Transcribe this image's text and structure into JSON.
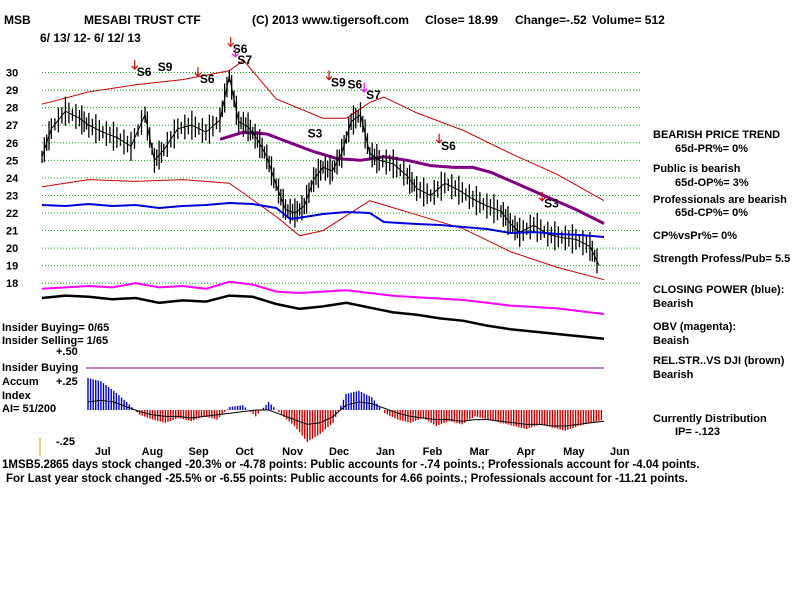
{
  "header": {
    "ticker": "MSB",
    "name": "MESABI TRUST CTF",
    "copyright": "(C) 2013 www.tigersoft.com",
    "close": "Close=  18.99",
    "change": "Change=-.52",
    "volume": "Volume= 512",
    "date_range": "6/ 13/ 12-  6/ 12/ 13"
  },
  "right_panel": {
    "l1": "BEARISH PRICE TREND",
    "l2": "65d-PR%= 0%",
    "l3": "Public is bearish",
    "l4": "65d-OP%= 3%",
    "l5": "Professionals are bearish",
    "l6": "65d-CP%= 0%",
    "l7": "CP%vsPr%=  0%",
    "l8": "Strength Profess/Pub= 5.5",
    "l9": "CLOSING POWER (blue):",
    "l10": "Bearish",
    "l11": "OBV (magenta):",
    "l12": "Beaish",
    "l13": "REL.STR..VS DJI (brown)",
    "l14": "Bearish",
    "l15": "Currently Distribution",
    "l16": "IP= -.123"
  },
  "left_panel": {
    "insider_buying_count": "Insider Buying= 0/65",
    "insider_selling_count": "Insider Selling= 1/65",
    "plus50": "+.50",
    "insider_buying": "Insider Buying",
    "accum": "Accum",
    "plus25": "+.25",
    "index": "Index",
    "ai": "AI= 51/200",
    "minus25": "-.25"
  },
  "bottom_text": {
    "overlap": "1MSB5.28",
    "line1": "65 days stock changed -20.3% or -4.78 points:  Public accounts for -.74 points.;  Professionals account for -4.04 points.",
    "line2": "For Last year stock changed -25.5% or -6.55 points:  Public accounts for  4.66 points.;  Professionals account for -11.21 points."
  },
  "colors": {
    "price": "#000000",
    "band": "#cc0000",
    "ma": "#800080",
    "closing_power": "#0000dd",
    "obv": "#ff00ff",
    "relstr": "#000000",
    "accum_pos": "#0000cc",
    "accum_neg": "#cc0000",
    "signal_red": "#cc0000",
    "signal_magenta": "#ff00ff",
    "grid": "#00aa00"
  },
  "chart_data": {
    "type": "line",
    "title": "MESABI TRUST CTF",
    "y_ticks": [
      30,
      29,
      28,
      27,
      26,
      25,
      24,
      23,
      22,
      21,
      20,
      19,
      18
    ],
    "ylim": [
      17.5,
      31
    ],
    "xlim": [
      0,
      12
    ],
    "months": [
      {
        "label": "Jul",
        "x": 1.0
      },
      {
        "label": "Aug",
        "x": 2.0
      },
      {
        "label": "Sep",
        "x": 3.0
      },
      {
        "label": "Oct",
        "x": 4.0
      },
      {
        "label": "Nov",
        "x": 5.0
      },
      {
        "label": "Dec",
        "x": 6.0
      },
      {
        "label": "Jan",
        "x": 7.0
      },
      {
        "label": "Feb",
        "x": 8.0
      },
      {
        "label": "Mar",
        "x": 9.0
      },
      {
        "label": "Apr",
        "x": 10.0
      },
      {
        "label": "May",
        "x": 11.0
      },
      {
        "label": "Jun",
        "x": 12.0
      }
    ],
    "price": {
      "x": [
        0,
        0.2,
        0.5,
        0.8,
        1.0,
        1.3,
        1.6,
        1.9,
        2.2,
        2.4,
        2.6,
        2.9,
        3.2,
        3.5,
        3.8,
        4.0,
        4.2,
        4.4,
        4.6,
        4.8,
        5.0,
        5.2,
        5.4,
        5.6,
        5.8,
        6.0,
        6.2,
        6.4,
        6.6,
        6.8,
        7.0,
        7.2,
        7.5,
        7.8,
        8.0,
        8.3,
        8.6,
        8.9,
        9.2,
        9.5,
        9.8,
        10.0,
        10.2,
        10.5,
        10.8,
        11.1,
        11.4,
        11.7,
        11.9
      ],
      "values": [
        25.2,
        26.8,
        27.8,
        27.4,
        27.0,
        26.6,
        26.3,
        25.8,
        27.6,
        25.0,
        25.6,
        26.8,
        27.0,
        26.6,
        27.3,
        29.8,
        27.2,
        26.9,
        26.2,
        25.2,
        23.6,
        22.2,
        22.0,
        22.4,
        23.9,
        24.6,
        24.4,
        25.4,
        27.2,
        27.6,
        25.4,
        25.0,
        24.8,
        24.1,
        23.4,
        23.0,
        23.7,
        23.3,
        22.8,
        22.4,
        22.1,
        21.4,
        20.9,
        21.3,
        20.8,
        20.6,
        20.5,
        20.1,
        19.0
      ]
    },
    "upper_band": {
      "x": [
        0,
        1,
        2,
        3,
        4,
        4.3,
        5,
        6,
        6.5,
        7,
        7.3,
        8,
        9,
        10,
        11,
        12
      ],
      "values": [
        28.2,
        28.9,
        29.3,
        29.6,
        30.1,
        30.7,
        28.5,
        27.4,
        27.4,
        28.3,
        28.6,
        27.7,
        26.7,
        25.4,
        24.2,
        22.7
      ]
    },
    "lower_band": {
      "x": [
        0,
        1,
        2,
        3,
        4,
        5,
        5.5,
        6,
        7,
        8,
        9,
        10,
        11,
        12
      ],
      "values": [
        23.5,
        23.9,
        23.8,
        23.9,
        23.7,
        21.8,
        20.7,
        21.0,
        22.7,
        21.9,
        21.1,
        19.8,
        18.9,
        18.2
      ]
    },
    "moving_average": {
      "x": [
        3.8,
        4.3,
        4.8,
        5.3,
        5.8,
        6.3,
        6.8,
        7.3,
        7.8,
        8.3,
        8.8,
        9.2,
        9.6,
        10.2,
        10.8,
        11.4,
        12
      ],
      "values": [
        26.2,
        26.6,
        26.5,
        26.0,
        25.5,
        25.1,
        25.0,
        25.2,
        25.0,
        24.7,
        24.6,
        24.6,
        24.3,
        23.6,
        22.9,
        22.2,
        21.4
      ]
    },
    "signals": [
      {
        "label": "S6",
        "x": 2.15,
        "y": 29.8,
        "arrow": "red"
      },
      {
        "label": "S9",
        "x": 2.6,
        "y": 30.1,
        "arrow": "none"
      },
      {
        "label": "S6",
        "x": 3.5,
        "y": 29.4,
        "arrow": "red"
      },
      {
        "label": "S6",
        "x": 4.2,
        "y": 31.1,
        "arrow": "red"
      },
      {
        "label": "S7",
        "x": 4.3,
        "y": 30.5,
        "arrow": "magenta"
      },
      {
        "label": "S9",
        "x": 6.3,
        "y": 29.2,
        "arrow": "red"
      },
      {
        "label": "S6",
        "x": 6.65,
        "y": 29.1,
        "arrow": "none"
      },
      {
        "label": "S7",
        "x": 7.05,
        "y": 28.5,
        "arrow": "magenta"
      },
      {
        "label": "S3",
        "x": 5.8,
        "y": 26.3,
        "arrow": "none"
      },
      {
        "label": "S6",
        "x": 8.65,
        "y": 25.6,
        "arrow": "red"
      },
      {
        "label": "S3",
        "x": 10.85,
        "y": 22.3,
        "arrow": "red"
      }
    ],
    "closing_power": {
      "x": [
        0,
        0.5,
        1,
        1.5,
        2,
        2.5,
        3,
        3.5,
        4,
        4.5,
        5,
        5.3,
        5.6,
        6,
        6.5,
        7,
        7.3,
        8,
        8.5,
        9,
        9.5,
        10,
        10.5,
        11,
        11.5,
        12
      ],
      "values": [
        0.5,
        0.4,
        0.6,
        0.4,
        0.5,
        0.2,
        0.4,
        0.5,
        0.7,
        0.6,
        0.2,
        -0.9,
        -0.7,
        -0.4,
        -0.2,
        -0.3,
        -1.2,
        -1.4,
        -1.5,
        -1.7,
        -1.9,
        -2.3,
        -2.2,
        -2.4,
        -2.5,
        -2.7
      ]
    },
    "obv": {
      "x": [
        0,
        0.5,
        1,
        1.5,
        2,
        2.5,
        3,
        3.5,
        4,
        4.5,
        5,
        5.5,
        6,
        6.5,
        7,
        7.5,
        8,
        8.5,
        9,
        9.5,
        10,
        10.5,
        11,
        11.5,
        12
      ],
      "values": [
        0.8,
        0.9,
        1.0,
        0.9,
        1.2,
        0.9,
        1.0,
        0.8,
        1.3,
        1.1,
        0.6,
        0.5,
        0.6,
        0.7,
        0.5,
        0.3,
        0.2,
        0.1,
        0.0,
        -0.2,
        -0.4,
        -0.5,
        -0.6,
        -0.8,
        -1.0
      ]
    },
    "relative_strength": {
      "x": [
        0,
        0.5,
        1,
        1.5,
        2,
        2.5,
        3,
        3.5,
        4,
        4.5,
        5,
        5.5,
        6,
        6.5,
        7,
        7.5,
        8,
        8.5,
        9,
        9.5,
        10,
        10.5,
        11,
        11.5,
        12
      ],
      "values": [
        1.0,
        1.2,
        1.1,
        0.9,
        1.0,
        0.6,
        0.8,
        0.7,
        1.2,
        1.1,
        0.5,
        0.1,
        0.3,
        0.6,
        0.2,
        -0.2,
        -0.4,
        -0.7,
        -0.9,
        -1.3,
        -1.6,
        -1.8,
        -2.0,
        -2.2,
        -2.4
      ]
    },
    "accumulation": {
      "x": [
        0,
        0.3,
        0.6,
        0.9,
        1.2,
        1.5,
        1.8,
        2.1,
        2.4,
        2.7,
        3.0,
        3.3,
        3.6,
        3.9,
        4.2,
        4.5,
        4.8,
        5.1,
        5.4,
        5.7,
        6.0,
        6.3,
        6.6,
        6.9,
        7.2,
        7.5,
        7.8,
        8.1,
        8.4,
        8.7,
        9.0,
        9.3,
        9.6,
        9.9,
        10.2,
        10.5,
        10.8,
        11.1,
        11.4,
        11.7,
        12.0
      ],
      "values": [
        0.2,
        0.18,
        0.12,
        0.05,
        -0.03,
        -0.06,
        -0.08,
        -0.05,
        -0.07,
        -0.04,
        -0.06,
        0.02,
        0.03,
        -0.04,
        0.05,
        -0.03,
        -0.1,
        -0.2,
        -0.15,
        -0.08,
        0.1,
        0.12,
        0.08,
        -0.02,
        -0.06,
        -0.08,
        -0.05,
        -0.1,
        -0.07,
        -0.09,
        -0.04,
        -0.06,
        -0.08,
        -0.1,
        -0.12,
        -0.09,
        -0.11,
        -0.13,
        -0.1,
        -0.08,
        -0.06
      ],
      "avg": [
        0.05,
        0.06,
        0.05,
        0.02,
        -0.01,
        -0.03,
        -0.04,
        -0.04,
        -0.05,
        -0.04,
        -0.03,
        -0.02,
        -0.01,
        0.0,
        0.0,
        -0.03,
        -0.06,
        -0.09,
        -0.08,
        -0.04,
        0.03,
        0.05,
        0.04,
        0.01,
        -0.02,
        -0.04,
        -0.05,
        -0.06,
        -0.06,
        -0.07,
        -0.06,
        -0.06,
        -0.07,
        -0.08,
        -0.09,
        -0.09,
        -0.1,
        -0.1,
        -0.09,
        -0.08,
        -0.07
      ]
    }
  }
}
